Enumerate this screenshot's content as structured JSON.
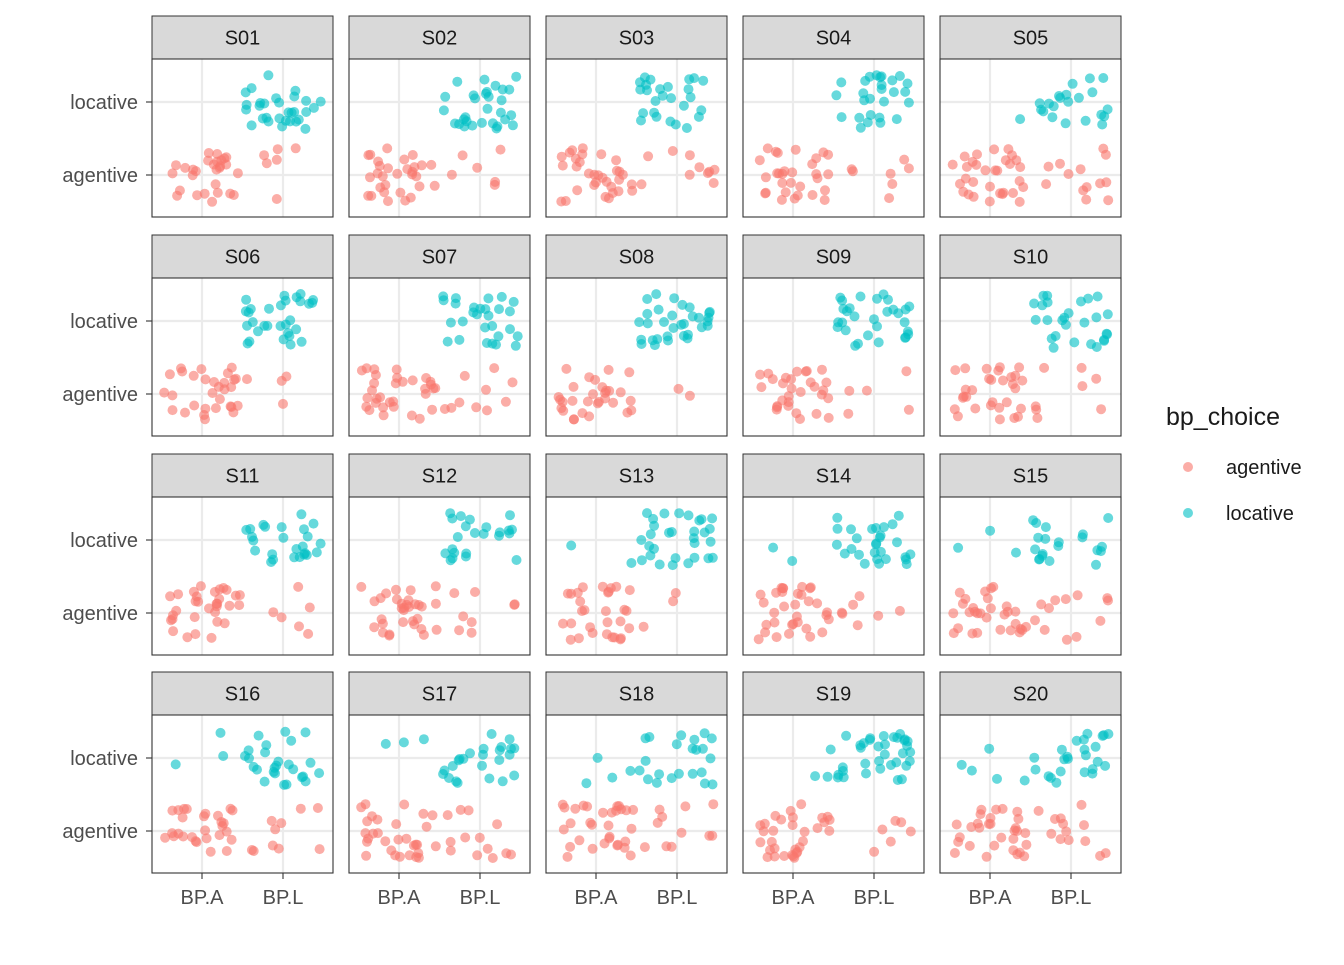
{
  "chart_data": {
    "type": "scatter",
    "facet_variable": "participant",
    "panels": [
      "S01",
      "S02",
      "S03",
      "S04",
      "S05",
      "S06",
      "S07",
      "S08",
      "S09",
      "S10",
      "S11",
      "S12",
      "S13",
      "S14",
      "S15",
      "S16",
      "S17",
      "S18",
      "S19",
      "S20"
    ],
    "x_categories": [
      "BP.A",
      "BP.L"
    ],
    "y_categories": [
      "agentive",
      "locative"
    ],
    "legend": {
      "title": "bp_choice",
      "position": "right",
      "entries": [
        {
          "label": "agentive",
          "color": "#F8766D"
        },
        {
          "label": "locative",
          "color": "#00BFC4"
        }
      ]
    },
    "jitter": "points jittered around category positions",
    "counts": [
      {
        "panel": "S01",
        "BP.A": {
          "agentive": 28,
          "locative": 0
        },
        "BP.L": {
          "agentive": 6,
          "locative": 30
        }
      },
      {
        "panel": "S02",
        "BP.A": {
          "agentive": 30,
          "locative": 0
        },
        "BP.L": {
          "agentive": 6,
          "locative": 30
        }
      },
      {
        "panel": "S03",
        "BP.A": {
          "agentive": 32,
          "locative": 0
        },
        "BP.L": {
          "agentive": 10,
          "locative": 26
        }
      },
      {
        "panel": "S04",
        "BP.A": {
          "agentive": 30,
          "locative": 0
        },
        "BP.L": {
          "agentive": 7,
          "locative": 27
        }
      },
      {
        "panel": "S05",
        "BP.A": {
          "agentive": 31,
          "locative": 1
        },
        "BP.L": {
          "agentive": 13,
          "locative": 21
        }
      },
      {
        "panel": "S06",
        "BP.A": {
          "agentive": 30,
          "locative": 0
        },
        "BP.L": {
          "agentive": 4,
          "locative": 30
        }
      },
      {
        "panel": "S07",
        "BP.A": {
          "agentive": 32,
          "locative": 0
        },
        "BP.L": {
          "agentive": 10,
          "locative": 28
        }
      },
      {
        "panel": "S08",
        "BP.A": {
          "agentive": 30,
          "locative": 0
        },
        "BP.L": {
          "agentive": 2,
          "locative": 32
        }
      },
      {
        "panel": "S09",
        "BP.A": {
          "agentive": 30,
          "locative": 0
        },
        "BP.L": {
          "agentive": 5,
          "locative": 30
        }
      },
      {
        "panel": "S10",
        "BP.A": {
          "agentive": 30,
          "locative": 0
        },
        "BP.L": {
          "agentive": 8,
          "locative": 27
        }
      },
      {
        "panel": "S11",
        "BP.A": {
          "agentive": 32,
          "locative": 0
        },
        "BP.L": {
          "agentive": 6,
          "locative": 25
        }
      },
      {
        "panel": "S12",
        "BP.A": {
          "agentive": 32,
          "locative": 0
        },
        "BP.L": {
          "agentive": 8,
          "locative": 23
        }
      },
      {
        "panel": "S13",
        "BP.A": {
          "agentive": 30,
          "locative": 2
        },
        "BP.L": {
          "agentive": 3,
          "locative": 30
        }
      },
      {
        "panel": "S14",
        "BP.A": {
          "agentive": 33,
          "locative": 2
        },
        "BP.L": {
          "agentive": 7,
          "locative": 28
        }
      },
      {
        "panel": "S15",
        "BP.A": {
          "agentive": 30,
          "locative": 3
        },
        "BP.L": {
          "agentive": 12,
          "locative": 20
        }
      },
      {
        "panel": "S16",
        "BP.A": {
          "agentive": 28,
          "locative": 3
        },
        "BP.L": {
          "agentive": 10,
          "locative": 26
        }
      },
      {
        "panel": "S17",
        "BP.A": {
          "agentive": 30,
          "locative": 3
        },
        "BP.L": {
          "agentive": 13,
          "locative": 24
        }
      },
      {
        "panel": "S18",
        "BP.A": {
          "agentive": 31,
          "locative": 4
        },
        "BP.L": {
          "agentive": 11,
          "locative": 22
        }
      },
      {
        "panel": "S19",
        "BP.A": {
          "agentive": 32,
          "locative": 3
        },
        "BP.L": {
          "agentive": 6,
          "locative": 34
        }
      },
      {
        "panel": "S20",
        "BP.A": {
          "agentive": 30,
          "locative": 5
        },
        "BP.L": {
          "agentive": 13,
          "locative": 24
        }
      }
    ]
  },
  "colors": {
    "agentive": "#F8766D",
    "locative": "#00BFC4",
    "strip_fill": "#D9D9D9",
    "panel_border": "#333333",
    "grid": "#EBEBEB",
    "axis_text": "#4D4D4D"
  }
}
